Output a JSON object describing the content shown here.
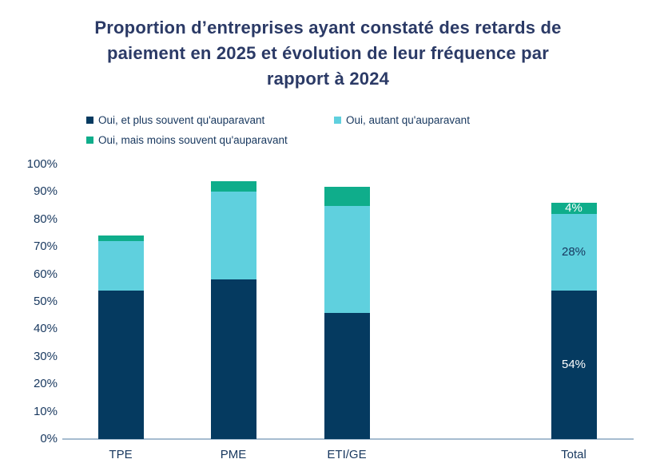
{
  "header": {
    "title_lines": [
      "Proportion d’entreprises ayant constaté des retards de",
      "paiement en 2025 et évolution de leur fréquence par",
      "rapport à 2024"
    ]
  },
  "colors": {
    "title_text": "#2b3a66",
    "axis_text": "#17375e",
    "axis_line": "#a6bcd0",
    "label_on_dark": "#ffffff",
    "label_on_light": "#17375e",
    "background": "#ffffff"
  },
  "chart_data": {
    "type": "bar",
    "stacked": true,
    "categories": [
      "TPE",
      "PME",
      "ETI/GE",
      "Total"
    ],
    "series": [
      {
        "name": "Oui, et plus souvent qu'auparavant",
        "color": "#053a60",
        "values": [
          54,
          58,
          46,
          54
        ]
      },
      {
        "name": "Oui, autant qu'auparavant",
        "color": "#5fd0de",
        "values": [
          18,
          32,
          39,
          28
        ]
      },
      {
        "name": "Oui, mais moins souvent qu'auparavant",
        "color": "#0fad8b",
        "values": [
          2,
          4,
          7,
          4
        ]
      }
    ],
    "data_labels": {
      "category": "Total",
      "values": [
        "54%",
        "28%",
        "4%"
      ],
      "label_colors": [
        "#ffffff",
        "#17375e",
        "#ffffff"
      ]
    },
    "ylim": [
      0,
      100
    ],
    "yticks": [
      "0%",
      "10%",
      "20%",
      "30%",
      "40%",
      "50%",
      "60%",
      "70%",
      "80%",
      "90%",
      "100%"
    ],
    "xlabel": "",
    "ylabel": "",
    "grid": false,
    "legend_position": "top-left"
  }
}
